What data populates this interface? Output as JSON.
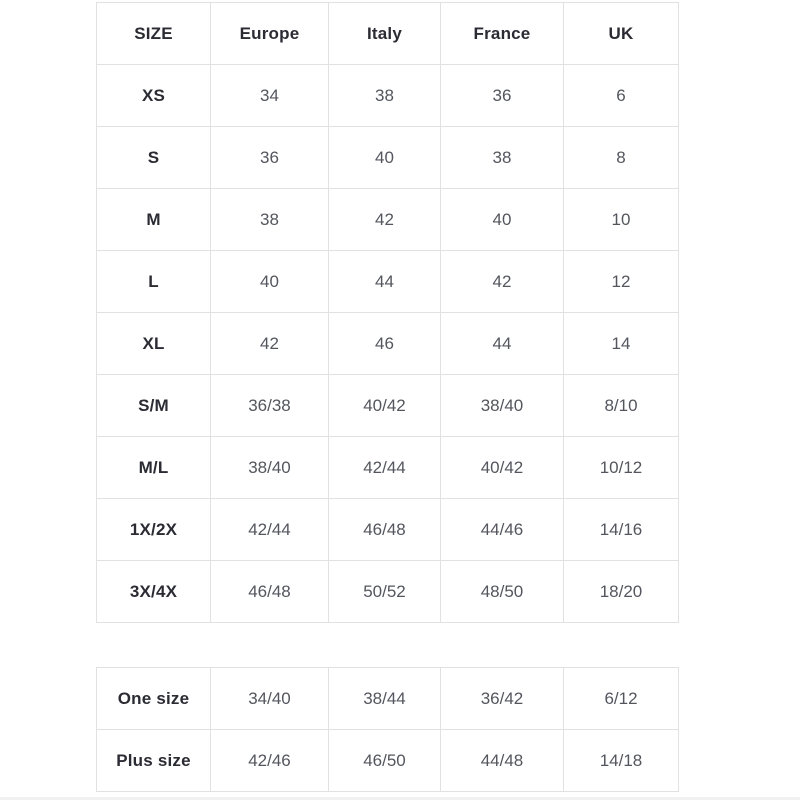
{
  "chart_data": [
    {
      "type": "table",
      "name": "size-conversion-table",
      "columns": [
        "SIZE",
        "Europe",
        "Italy",
        "France",
        "UK"
      ],
      "rows": [
        [
          "XS",
          "34",
          "38",
          "36",
          "6"
        ],
        [
          "S",
          "36",
          "40",
          "38",
          "8"
        ],
        [
          "M",
          "38",
          "42",
          "40",
          "10"
        ],
        [
          "L",
          "40",
          "44",
          "42",
          "12"
        ],
        [
          "XL",
          "42",
          "46",
          "44",
          "14"
        ],
        [
          "S/M",
          "36/38",
          "40/42",
          "38/40",
          "8/10"
        ],
        [
          "M/L",
          "38/40",
          "42/44",
          "40/42",
          "10/12"
        ],
        [
          "1X/2X",
          "42/44",
          "46/48",
          "44/46",
          "14/16"
        ],
        [
          "3X/4X",
          "46/48",
          "50/52",
          "48/50",
          "18/20"
        ]
      ]
    },
    {
      "type": "table",
      "name": "special-sizes-table",
      "columns": [],
      "rows": [
        [
          "One size",
          "34/40",
          "38/44",
          "36/42",
          "6/12"
        ],
        [
          "Plus size",
          "42/46",
          "46/50",
          "44/48",
          "14/18"
        ]
      ]
    }
  ],
  "colors": {
    "border": "#e1e1e1",
    "header_text": "#2b2b33",
    "value_text": "#54565e",
    "background": "#ffffff"
  }
}
